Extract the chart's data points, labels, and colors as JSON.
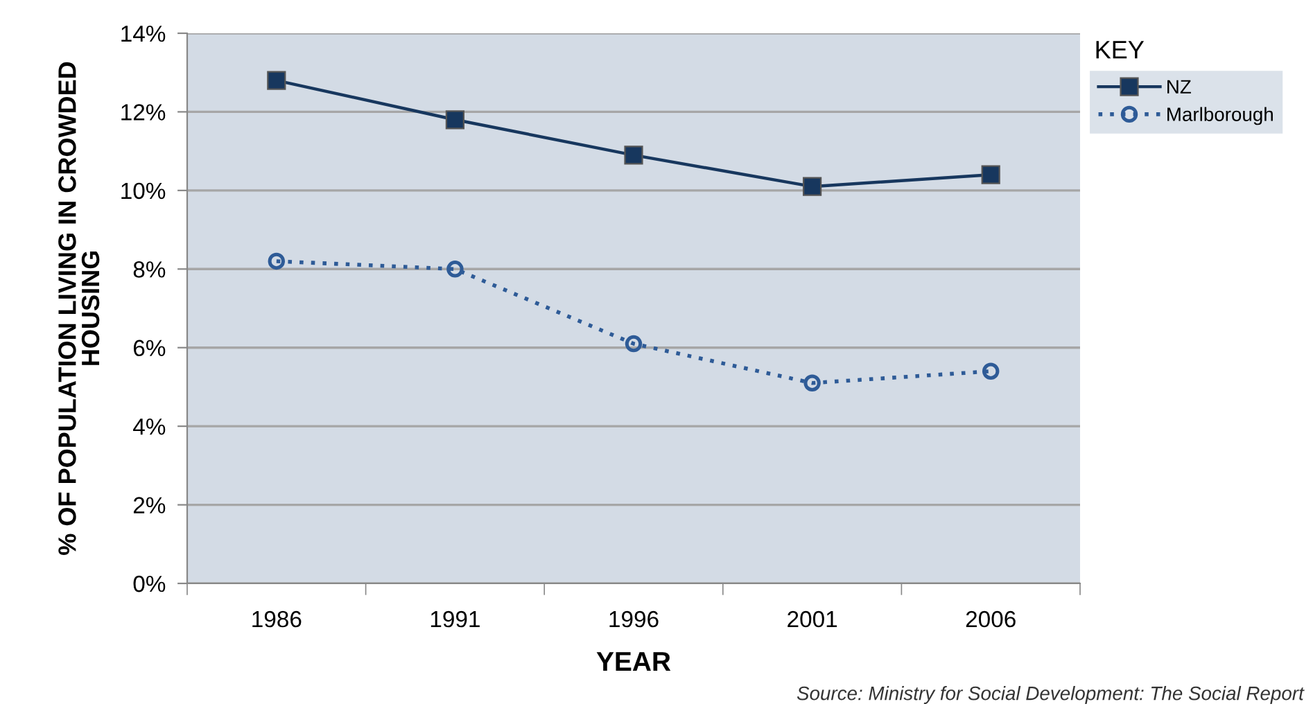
{
  "chart_data": {
    "type": "line",
    "xlabel": "YEAR",
    "ylabel": "% OF POPULATION LIVING IN CROWDED HOUSING",
    "legend_title": "KEY",
    "categories": [
      "1986",
      "1991",
      "1996",
      "2001",
      "2006"
    ],
    "series": [
      {
        "name": "NZ",
        "color": "#17375e",
        "values": [
          12.8,
          11.8,
          10.9,
          10.1,
          10.4
        ],
        "marker": "square",
        "line_style": "solid"
      },
      {
        "name": "Marlborough",
        "color": "#2e5b97",
        "values": [
          8.2,
          8.0,
          6.1,
          5.1,
          5.4
        ],
        "marker": "circle",
        "line_style": "dotted"
      }
    ],
    "ylim": [
      0,
      14
    ],
    "yticks": [
      {
        "value": 0,
        "label": "0%"
      },
      {
        "value": 2,
        "label": "2%"
      },
      {
        "value": 4,
        "label": "4%"
      },
      {
        "value": 6,
        "label": "6%"
      },
      {
        "value": 8,
        "label": "8%"
      },
      {
        "value": 10,
        "label": "10%"
      },
      {
        "value": 12,
        "label": "12%"
      },
      {
        "value": 14,
        "label": "14%"
      }
    ],
    "grid": "y",
    "legend": "top right",
    "annotations": [
      "Source: Ministry for Social Development: The Social Report"
    ]
  }
}
